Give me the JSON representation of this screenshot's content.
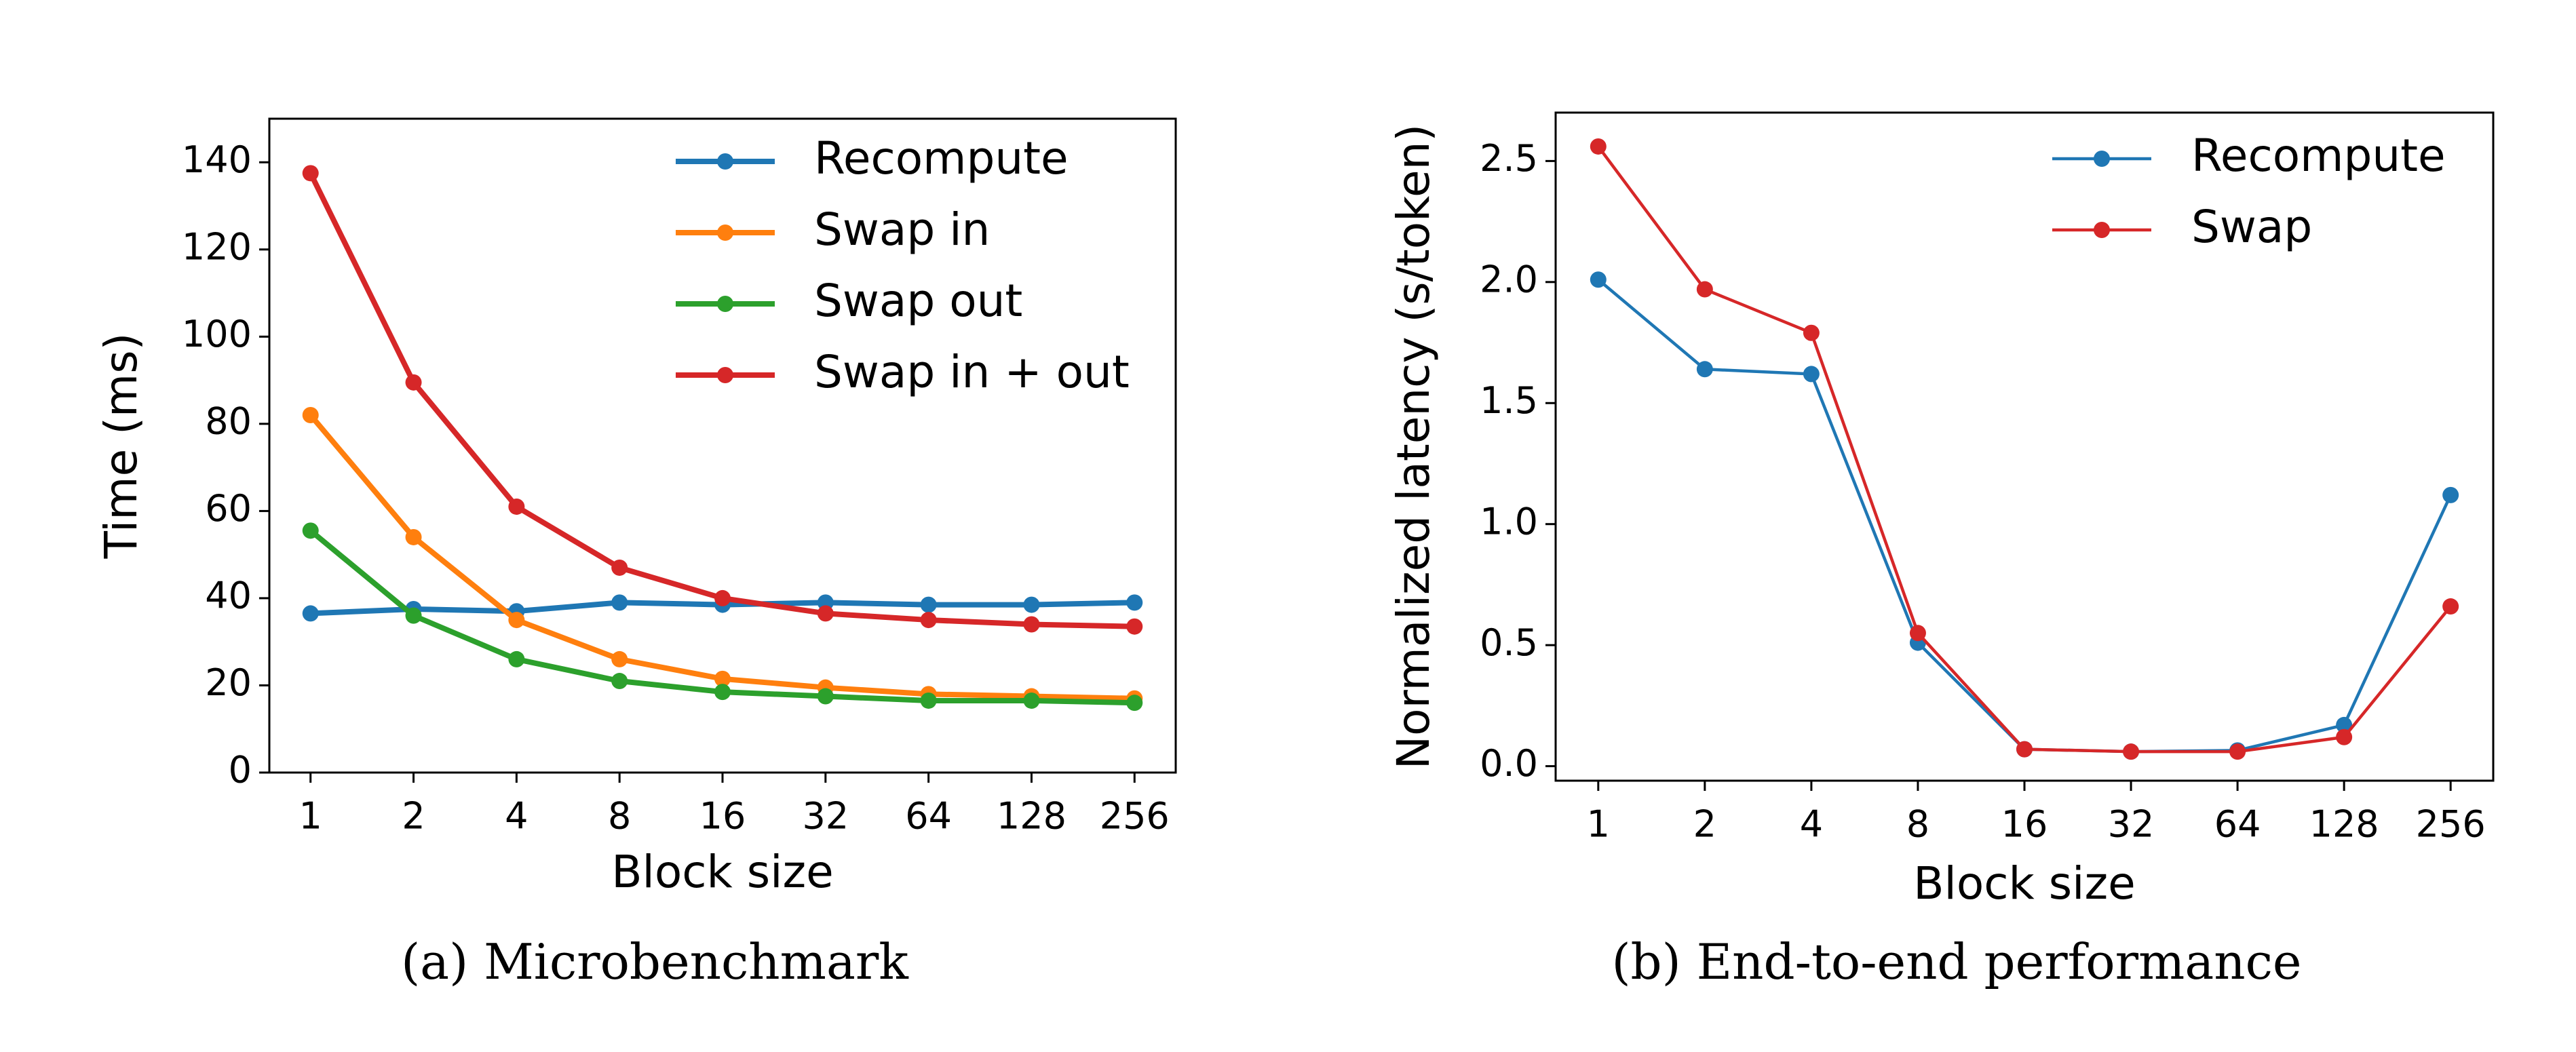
{
  "chart_data": [
    {
      "type": "line",
      "caption": "(a) Microbenchmark",
      "x_label": "Block size",
      "y_label": "Time (ms)",
      "categories": [
        "1",
        "2",
        "4",
        "8",
        "16",
        "32",
        "64",
        "128",
        "256"
      ],
      "series": [
        {
          "name": "Recompute",
          "color": "#1f77b4",
          "values": [
            36.5,
            37.5,
            37,
            39,
            38.5,
            39,
            38.5,
            38.5,
            39
          ]
        },
        {
          "name": "Swap in",
          "color": "#ff7f0e",
          "values": [
            82,
            54,
            35,
            26,
            21.5,
            19.5,
            18,
            17.5,
            17
          ]
        },
        {
          "name": "Swap out",
          "color": "#2ca02c",
          "values": [
            55.5,
            36,
            26,
            21,
            18.5,
            17.5,
            16.5,
            16.5,
            16
          ]
        },
        {
          "name": "Swap in + out",
          "color": "#d62728",
          "values": [
            137.5,
            89.5,
            61,
            47,
            40,
            36.5,
            35,
            34,
            33.5
          ]
        }
      ],
      "ylim": [
        0,
        150
      ],
      "yticks": [
        0,
        20,
        40,
        60,
        80,
        100,
        120,
        140
      ],
      "legend": "upper right"
    },
    {
      "type": "line",
      "caption": "(b) End-to-end performance",
      "x_label": "Block size",
      "y_label": "Normalized latency (s/token)",
      "categories": [
        "1",
        "2",
        "4",
        "8",
        "16",
        "32",
        "64",
        "128",
        "256"
      ],
      "series": [
        {
          "name": "Recompute",
          "color": "#1f77b4",
          "values": [
            2.01,
            1.64,
            1.62,
            0.51,
            0.07,
            0.06,
            0.065,
            0.17,
            1.12
          ]
        },
        {
          "name": "Swap",
          "color": "#d62728",
          "values": [
            2.56,
            1.97,
            1.79,
            0.55,
            0.07,
            0.06,
            0.06,
            0.12,
            0.66
          ]
        }
      ],
      "ylim": [
        -0.06,
        2.7
      ],
      "yticks": [
        {
          "value": 0,
          "label": "0.0"
        },
        {
          "value": 0.5,
          "label": "0.5"
        },
        {
          "value": 1,
          "label": "1.0"
        },
        {
          "value": 1.5,
          "label": "1.5"
        },
        {
          "value": 2,
          "label": "2.0"
        },
        {
          "value": 2.5,
          "label": "2.5"
        }
      ],
      "legend": "upper right"
    }
  ]
}
